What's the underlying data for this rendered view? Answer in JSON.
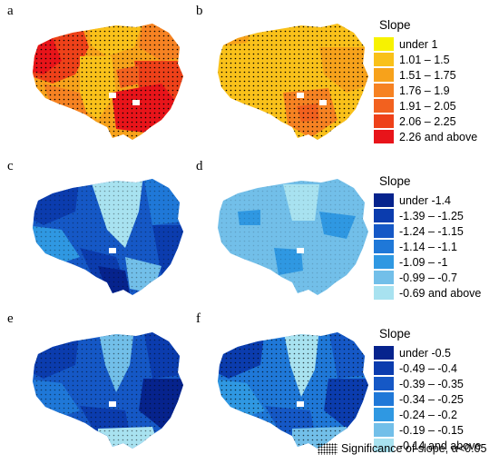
{
  "panels": [
    {
      "letter": "a"
    },
    {
      "letter": "b"
    },
    {
      "letter": "c"
    },
    {
      "letter": "d"
    },
    {
      "letter": "e"
    },
    {
      "letter": "f"
    }
  ],
  "legends": [
    {
      "title": "Slope",
      "items": [
        {
          "label": "under 1",
          "color": "#f7f200"
        },
        {
          "label": "1.01 – 1.5",
          "color": "#f9c11a"
        },
        {
          "label": "1.51 – 1.75",
          "color": "#f7a21b"
        },
        {
          "label": "1.76 – 1.9",
          "color": "#f68222"
        },
        {
          "label": "1.91 – 2.05",
          "color": "#f2611f"
        },
        {
          "label": "2.06 – 2.25",
          "color": "#ee4119"
        },
        {
          "label": "2.26 and above",
          "color": "#e8141a"
        }
      ]
    },
    {
      "title": "Slope",
      "items": [
        {
          "label": "under -1.4",
          "color": "#06238d"
        },
        {
          "label": "-1.39 – -1.25",
          "color": "#0b3cae"
        },
        {
          "label": "-1.24 – -1.15",
          "color": "#1558c6"
        },
        {
          "label": "-1.14 – -1.1",
          "color": "#1f78d8"
        },
        {
          "label": "-1.09 – -1",
          "color": "#2f98e2"
        },
        {
          "label": "-0.99 – -0.7",
          "color": "#72bfe9"
        },
        {
          "label": "-0.69 and above",
          "color": "#a8e2f0"
        }
      ]
    },
    {
      "title": "Slope",
      "items": [
        {
          "label": "under -0.5",
          "color": "#06238d"
        },
        {
          "label": "-0.49 – -0.4",
          "color": "#0b3cae"
        },
        {
          "label": "-0.39 – -0.35",
          "color": "#1558c6"
        },
        {
          "label": "-0.34 – -0.25",
          "color": "#1f78d8"
        },
        {
          "label": "-0.24 – -0.2",
          "color": "#2f98e2"
        },
        {
          "label": "-0.19 – -0.15",
          "color": "#72bfe9"
        },
        {
          "label": "-0.14 and above",
          "color": "#a8e2f0"
        }
      ]
    }
  ],
  "significance_label": "Significance of slope, α<0.05"
}
